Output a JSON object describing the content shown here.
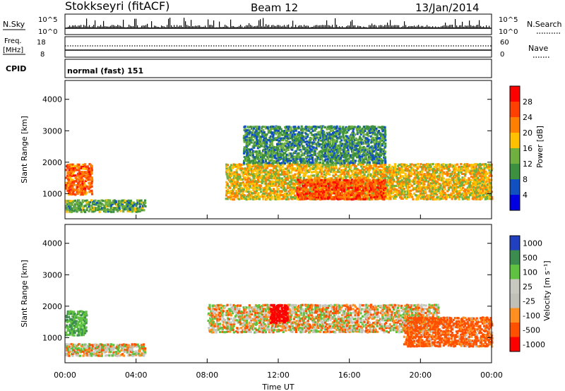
{
  "header": {
    "station": "Stokkseyri (fitACF)",
    "beam": "Beam 12",
    "date": "13/Jan/2014"
  },
  "top_strip": {
    "nsky_label": "N.Sky",
    "nsky_ticks": [
      "10^5",
      "10^0"
    ],
    "nsearch_label": "N.Search",
    "nsearch_ticks": [
      "10^5",
      "10^0"
    ],
    "freq_label_1": "Freq.",
    "freq_label_2": "[MHz]",
    "freq_ticks": [
      "18",
      "8"
    ],
    "nave_label": "Nave",
    "nave_ticks": [
      "60",
      "0"
    ],
    "cpid_label": "CPID",
    "cpid_value": "normal (fast) 151"
  },
  "chart_data": [
    {
      "type": "heatmap",
      "panel": "power",
      "ylabel": "Slant Range [km]",
      "ylim": [
        200,
        4600
      ],
      "yticks": [
        "1000",
        "2000",
        "3000",
        "4000"
      ],
      "colorbar_label": "Power [dB]",
      "colorbar_ticks": [
        "28",
        "24",
        "20",
        "16",
        "12",
        "8",
        "4"
      ],
      "colorbar_colors": [
        "#ff0000",
        "#ff4000",
        "#ff8000",
        "#ffc000",
        "#70b040",
        "#3c9040",
        "#1050c0",
        "#0000e0"
      ],
      "x_ticks": [
        "00:00",
        "04:00",
        "08:00",
        "12:00",
        "16:00",
        "20:00",
        "00:00"
      ],
      "bands": [
        {
          "t": [
            0.0,
            1.5
          ],
          "range": [
            1000,
            2000
          ],
          "level": 22
        },
        {
          "t": [
            0.0,
            4.5
          ],
          "range": [
            450,
            850
          ],
          "level": 10
        },
        {
          "t": [
            9.0,
            24.0
          ],
          "range": [
            850,
            2000
          ],
          "level": 16
        },
        {
          "t": [
            13.0,
            18.0
          ],
          "range": [
            850,
            1500
          ],
          "level": 24
        },
        {
          "t": [
            10.0,
            18.0
          ],
          "range": [
            2000,
            3200
          ],
          "level": 8
        }
      ]
    },
    {
      "type": "heatmap",
      "panel": "velocity",
      "ylabel": "Slant Range [km]",
      "ylim": [
        200,
        4600
      ],
      "yticks": [
        "1000",
        "2000",
        "3000",
        "4000"
      ],
      "colorbar_label": "Velocity [m s⁻¹]",
      "colorbar_ticks": [
        "1000",
        "500",
        "100",
        "25",
        "-25",
        "-100",
        "-500",
        "-1000"
      ],
      "colorbar_colors": [
        "#2040c0",
        "#3c8c50",
        "#60c040",
        "#c8c8c0",
        "#c0c0b8",
        "#ff9020",
        "#ff5000",
        "#ff0000"
      ],
      "x_ticks": [
        "00:00",
        "04:00",
        "08:00",
        "12:00",
        "16:00",
        "20:00",
        "00:00"
      ],
      "xlabel": "Time UT",
      "bands": [
        {
          "t": [
            0.0,
            1.2
          ],
          "range": [
            1100,
            1900
          ],
          "velocity": 500
        },
        {
          "t": [
            0.0,
            4.5
          ],
          "range": [
            450,
            850
          ],
          "velocity": 25
        },
        {
          "t": [
            8.0,
            21.0
          ],
          "range": [
            1200,
            2100
          ],
          "velocity": 0
        },
        {
          "t": [
            19.0,
            24.0
          ],
          "range": [
            750,
            1700
          ],
          "velocity": -200
        },
        {
          "t": [
            11.5,
            12.5
          ],
          "range": [
            1500,
            2100
          ],
          "velocity": -800
        }
      ]
    }
  ]
}
